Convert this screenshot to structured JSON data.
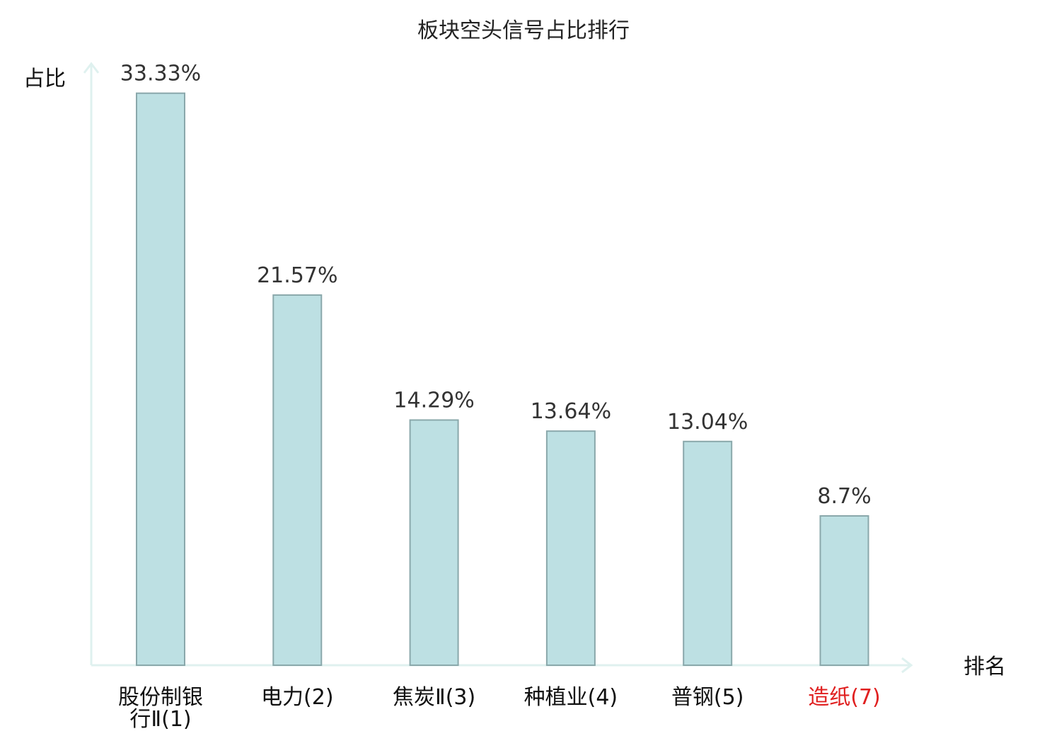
{
  "chart_data": {
    "type": "bar",
    "title": "板块空头信号占比排行",
    "ylabel": "占比",
    "xlabel": "排名",
    "ylim": [
      0,
      35
    ],
    "grid": false,
    "categories": [
      {
        "name": "股份制银行Ⅱ",
        "rank": "(1)",
        "highlight": false
      },
      {
        "name": "电力",
        "rank": "(2)",
        "highlight": false
      },
      {
        "name": "焦炭Ⅱ",
        "rank": "(3)",
        "highlight": false
      },
      {
        "name": "种植业",
        "rank": "(4)",
        "highlight": false
      },
      {
        "name": "普钢",
        "rank": "(5)",
        "highlight": false
      },
      {
        "name": "造纸",
        "rank": "(7)",
        "highlight": true
      }
    ],
    "values": [
      33.33,
      21.57,
      14.29,
      13.64,
      13.04,
      8.7
    ],
    "value_labels": [
      "33.33%",
      "21.57%",
      "14.29%",
      "13.64%",
      "13.04%",
      "8.7%"
    ]
  },
  "colors": {
    "bar_fill": "#bde0e3",
    "bar_stroke": "#8aa8ab",
    "axis": "#dff1ef",
    "label_normal": "#111111",
    "label_highlight": "#e02020"
  }
}
